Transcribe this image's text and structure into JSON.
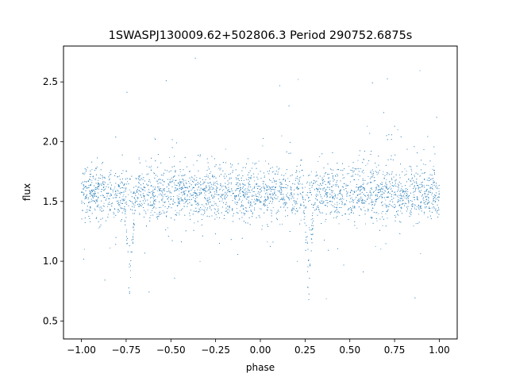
{
  "chart_data": {
    "type": "scatter",
    "title": "1SWASPJ130009.62+502806.3 Period 290752.6875s",
    "xlabel": "phase",
    "ylabel": "flux",
    "xlim": [
      -1.1,
      1.1
    ],
    "ylim": [
      0.35,
      2.8
    ],
    "xticks": [
      -1.0,
      -0.75,
      -0.5,
      -0.25,
      0.0,
      0.25,
      0.5,
      0.75,
      1.0
    ],
    "xtick_labels": [
      "−1.00",
      "−0.75",
      "−0.50",
      "−0.25",
      "0.00",
      "0.25",
      "0.50",
      "0.75",
      "1.00"
    ],
    "yticks": [
      0.5,
      1.0,
      1.5,
      2.0,
      2.5
    ],
    "ytick_labels": [
      "0.5",
      "1.0",
      "1.5",
      "2.0",
      "2.5"
    ],
    "grid": false,
    "point_color": "#1f77b4",
    "baseline_flux": 1.57,
    "eclipses": [
      {
        "phase": -0.73,
        "flux_min": 0.75
      },
      {
        "phase": 0.27,
        "flux_min": 0.75
      }
    ],
    "phase_range": [
      -1.0,
      1.0
    ]
  }
}
